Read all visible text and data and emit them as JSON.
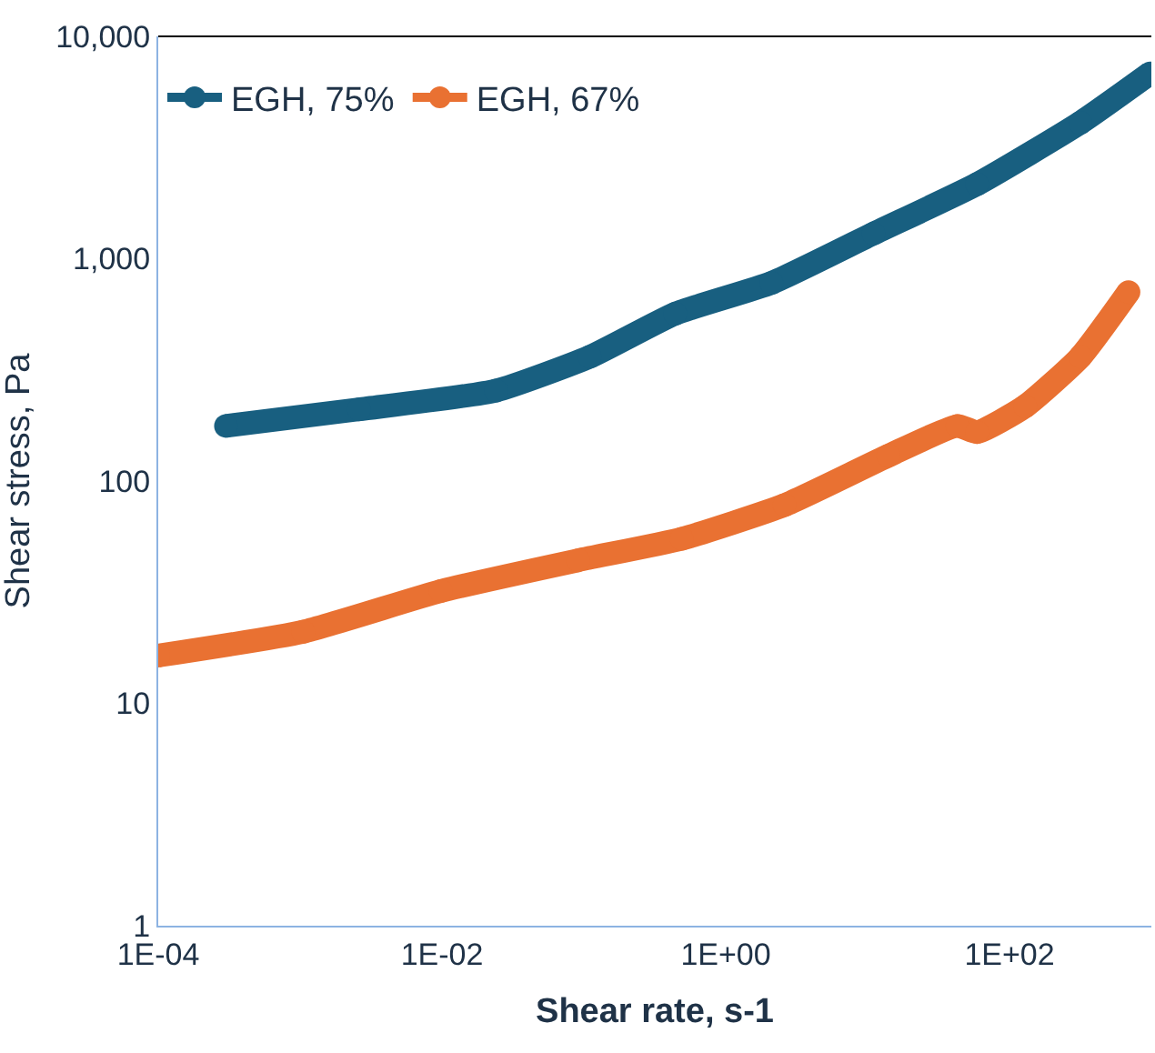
{
  "chart_data": {
    "type": "line",
    "xlabel": "Shear rate, s-1",
    "ylabel": "Shear stress, Pa",
    "log": "xy",
    "legend": "top left",
    "marker": "circle",
    "xlim": [
      0.0001,
      1000
    ],
    "xticks": [
      {
        "value": 0.0001,
        "label": "1E-04"
      },
      {
        "value": 0.01,
        "label": "1E-02"
      },
      {
        "value": 1,
        "label": "1E+00"
      },
      {
        "value": 100,
        "label": "1E+02"
      }
    ],
    "ylim": [
      1,
      10000
    ],
    "yticks": [
      1,
      10,
      100,
      {
        "value": 1000,
        "label": "1,000"
      },
      {
        "value": 10000,
        "label": "10,000"
      }
    ],
    "series": [
      {
        "name": "EGH, 75%",
        "color": "#185f80",
        "x": [
          0.0003,
          0.0026,
          0.024,
          0.11,
          0.44,
          2.1,
          11,
          59,
          316,
          980
        ],
        "values": [
          177,
          210,
          255,
          362,
          566,
          778,
          1297,
          2163,
          4090,
          6820
        ]
      },
      {
        "name": "EGH, 67%",
        "color": "#e97132",
        "x": [
          0.0001,
          0.00105,
          0.0098,
          0.091,
          0.49,
          2.6,
          14,
          43,
          59,
          129,
          316,
          690
        ],
        "values": [
          16.4,
          21,
          32,
          44,
          55,
          78,
          130,
          177,
          166,
          217,
          362,
          708
        ]
      }
    ]
  }
}
